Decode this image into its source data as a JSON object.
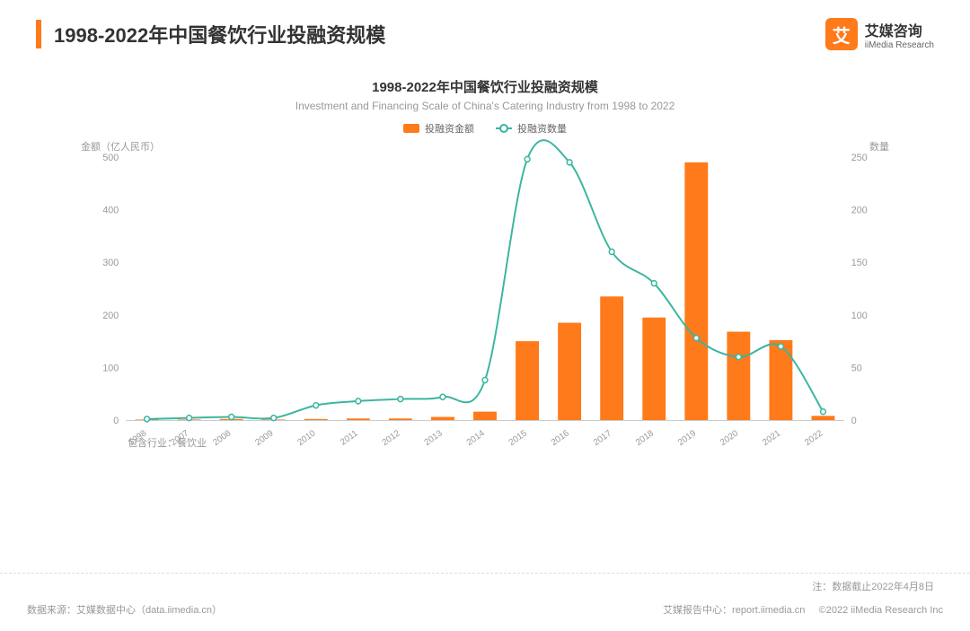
{
  "header": {
    "title": "1998-2022年中国餐饮行业投融资规模",
    "logo_cn": "艾媒咨询",
    "logo_en": "iiMedia Research",
    "logo_char": "艾"
  },
  "chart": {
    "type": "bar+line",
    "title": "1998-2022年中国餐饮行业投融资规模",
    "subtitle": "Investment and Financing Scale of China's Catering Industry from 1998 to 2022",
    "legend_bar": "投融资金额",
    "legend_line": "投融资数量",
    "y_left_label": "金额（亿人民币）",
    "y_right_label": "数量",
    "categories": [
      "1998",
      "2007",
      "2008",
      "2009",
      "2010",
      "2011",
      "2012",
      "2013",
      "2014",
      "2015",
      "2016",
      "2017",
      "2018",
      "2019",
      "2020",
      "2021",
      "2022"
    ],
    "bar_values": [
      1,
      1,
      2,
      1,
      2,
      3,
      3,
      6,
      16,
      150,
      185,
      235,
      195,
      490,
      168,
      152,
      8
    ],
    "line_values": [
      1,
      2,
      3,
      2,
      14,
      18,
      20,
      22,
      38,
      248,
      245,
      160,
      130,
      78,
      60,
      70,
      8
    ],
    "y_left": {
      "min": 0,
      "max": 500,
      "ticks": [
        0,
        100,
        200,
        300,
        400,
        500
      ]
    },
    "y_right": {
      "min": 0,
      "max": 250,
      "ticks": [
        0,
        50,
        100,
        150,
        200,
        250
      ]
    },
    "bar_color": "#ff7a1a",
    "line_color": "#3ab5a0",
    "grid_color": "#e8e8e8",
    "bar_width_ratio": 0.55,
    "industry_note": "包含行业：餐饮业"
  },
  "footer": {
    "source": "数据来源：艾媒数据中心（data.iimedia.cn）",
    "note": "注：数据截止2022年4月8日",
    "report_center": "艾媒报告中心：report.iimedia.cn",
    "copyright": "©2022  iiMedia Research Inc"
  }
}
